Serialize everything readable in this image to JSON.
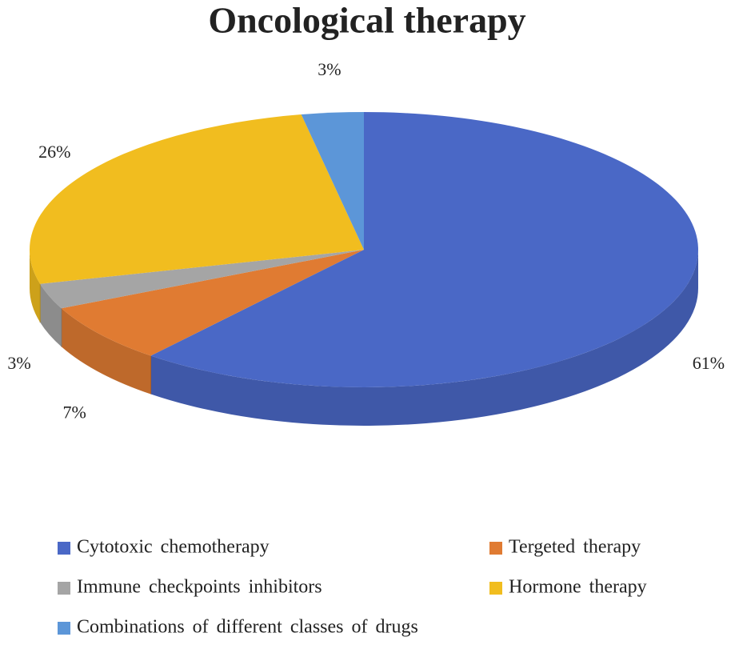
{
  "chart_data": {
    "type": "pie",
    "title": "Oncological therapy",
    "categories": [
      "Cytotoxic chemotherapy",
      "Tergeted therapy",
      "Immune checkpoints inhibitors",
      "Hormone therapy",
      "Combinations of different classes of drugs"
    ],
    "values": [
      61,
      7,
      3,
      26,
      3
    ],
    "value_labels": [
      "61%",
      "7%",
      "3%",
      "26%",
      "3%"
    ],
    "colors": [
      "#4a68c6",
      "#e07b32",
      "#a5a5a5",
      "#f1bd1f",
      "#5c96d8"
    ]
  }
}
